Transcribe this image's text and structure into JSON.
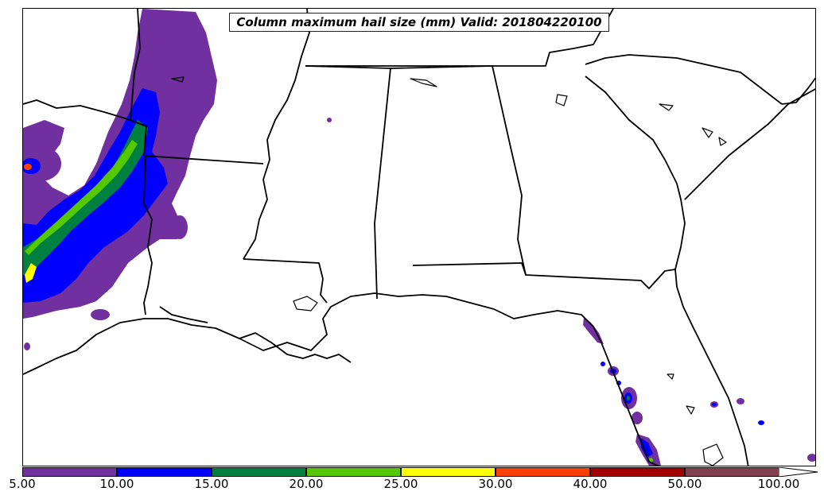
{
  "title": "Column maximum hail size (mm) Valid: 201804220100",
  "colorbar": {
    "ticks": [
      "5.00",
      "10.00",
      "15.00",
      "20.00",
      "25.00",
      "30.00",
      "40.00",
      "50.00",
      "100.00"
    ],
    "colors": [
      "#7030a0",
      "#0000ff",
      "#008040",
      "#55c800",
      "#ffff00",
      "#ff4000",
      "#a00000",
      "#804050"
    ]
  },
  "palette": {
    "purple": "#7030a0",
    "blue": "#0000ff",
    "green": "#008040",
    "lime": "#55c800",
    "yellow": "#ffff00",
    "orange": "#ff4000",
    "darkred": "#a00000",
    "border": "#000000"
  }
}
